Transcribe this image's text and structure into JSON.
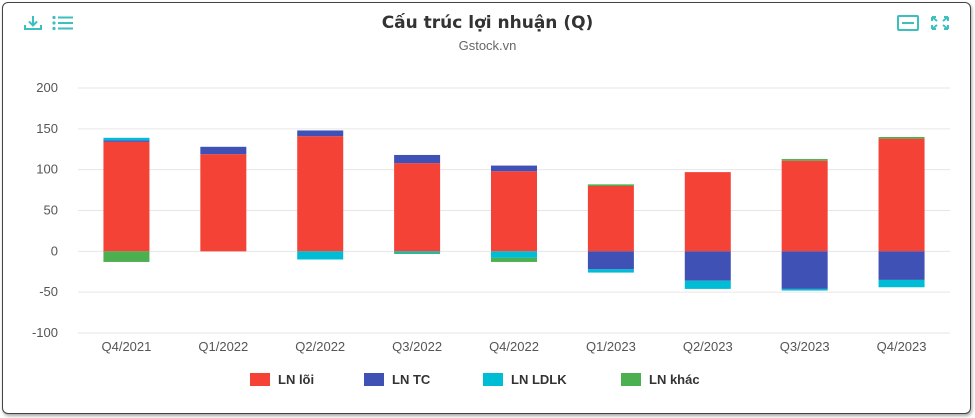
{
  "toolbar": {
    "download_icon": "download-icon",
    "menu_icon": "hamburger-menu-icon",
    "table_icon": "table-view-icon",
    "fullscreen_icon": "fullscreen-icon",
    "icon_color": "#3bbfbf"
  },
  "chart_data": {
    "type": "bar",
    "stacked": true,
    "title": "Cấu trúc lợi nhuận (Q)",
    "subtitle": "Gstock.vn",
    "xlabel": "",
    "ylabel": "",
    "ylim": [
      -100,
      200
    ],
    "yticks": [
      -100,
      -50,
      0,
      50,
      100,
      150,
      200
    ],
    "grid": true,
    "legend_position": "bottom",
    "categories": [
      "Q4/2021",
      "Q1/2022",
      "Q2/2022",
      "Q3/2022",
      "Q4/2022",
      "Q1/2023",
      "Q2/2023",
      "Q3/2023",
      "Q4/2023"
    ],
    "series": [
      {
        "name": "LN lõi",
        "color": "#f44336",
        "values": [
          134,
          119,
          141,
          108,
          98,
          80,
          97,
          111,
          138
        ]
      },
      {
        "name": "LN TC",
        "color": "#3f51b5",
        "values": [
          2,
          9,
          7,
          10,
          7,
          -22,
          -36,
          -46,
          -35
        ]
      },
      {
        "name": "LN LDLK",
        "color": "#00bcd4",
        "values": [
          3,
          0,
          -10,
          -2,
          -8,
          -4,
          -10,
          -2,
          -9
        ]
      },
      {
        "name": "LN khác",
        "color": "#4caf50",
        "values": [
          -13,
          0,
          0,
          -1,
          -5,
          2,
          0,
          2,
          2
        ]
      }
    ]
  }
}
